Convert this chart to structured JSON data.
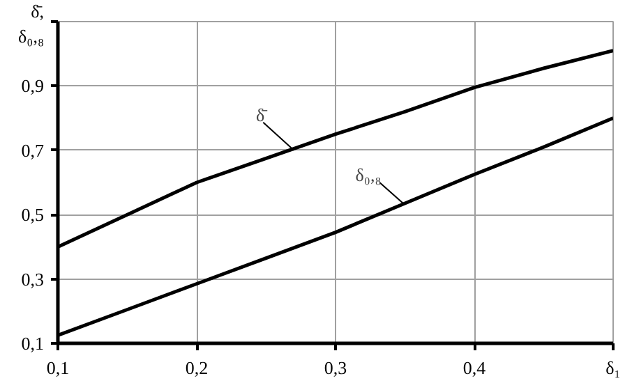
{
  "chart_data": {
    "type": "line",
    "xlabel": "δ₁",
    "ylabel": "δ̄,\nδ₀,₈",
    "x": [
      0.1,
      0.15,
      0.2,
      0.25,
      0.3,
      0.35,
      0.4,
      0.45,
      0.5
    ],
    "series": [
      {
        "color": "#000000",
        "values": [
          0.4,
          0.5,
          0.6,
          0.675,
          0.75,
          0.82,
          0.895,
          0.955,
          1.01
        ]
      },
      {
        "color": "#000000",
        "values": [
          0.125,
          0.205,
          0.285,
          0.365,
          0.445,
          0.535,
          0.625,
          0.71,
          0.8
        ]
      }
    ],
    "xlim": [
      0.1,
      0.5
    ],
    "xticks": [
      {
        "value": 0.1,
        "label": "0,1"
      },
      {
        "value": 0.2,
        "label": "0,2"
      },
      {
        "value": 0.3,
        "label": "0,3"
      },
      {
        "value": 0.4,
        "label": "0,4"
      },
      {
        "value": 0.5,
        "label": null
      }
    ],
    "ylim": [
      0.1,
      1.1
    ],
    "yticks": [
      {
        "value": 0.1,
        "label": "0,1"
      },
      {
        "value": 0.3,
        "label": "0,3"
      },
      {
        "value": 0.5,
        "label": "0,5"
      },
      {
        "value": 0.7,
        "label": "0,7"
      },
      {
        "value": 0.9,
        "label": "0,9"
      },
      {
        "value": 1.1,
        "label": null
      }
    ],
    "annotations": [
      {
        "text": "δ̄",
        "x": 0.27,
        "y": 0.7
      },
      {
        "text": "δ₀,₈",
        "x": 0.35,
        "y": 0.53
      }
    ],
    "grid": true,
    "marker": "none",
    "line_style": "solid"
  }
}
